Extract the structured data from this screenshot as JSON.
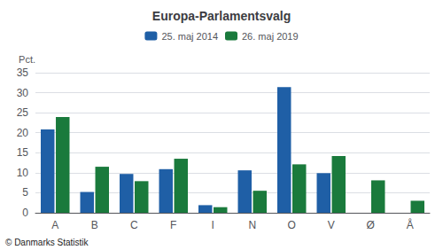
{
  "chart_data": {
    "type": "bar",
    "title": "Europa-Parlamentsvalg",
    "categories": [
      "A",
      "B",
      "C",
      "F",
      "I",
      "N",
      "O",
      "V",
      "Ø",
      "Å"
    ],
    "series": [
      {
        "name": "25. maj 2014",
        "color": "#1F5FA6",
        "values": [
          20.8,
          5.2,
          9.7,
          10.9,
          1.9,
          10.6,
          31.4,
          9.9,
          0.0,
          0.0
        ]
      },
      {
        "name": "26. maj 2019",
        "color": "#1A7A3C",
        "values": [
          23.9,
          11.5,
          7.9,
          13.5,
          1.4,
          5.5,
          12.1,
          14.2,
          8.1,
          3.0
        ]
      }
    ],
    "ylabel": "Pct.",
    "ylim": [
      0,
      35
    ],
    "yticks": [
      0,
      5,
      10,
      15,
      20,
      25,
      30,
      35
    ],
    "grid": true,
    "legend": "top",
    "annotations": [
      "© Danmarks Statistik"
    ]
  }
}
